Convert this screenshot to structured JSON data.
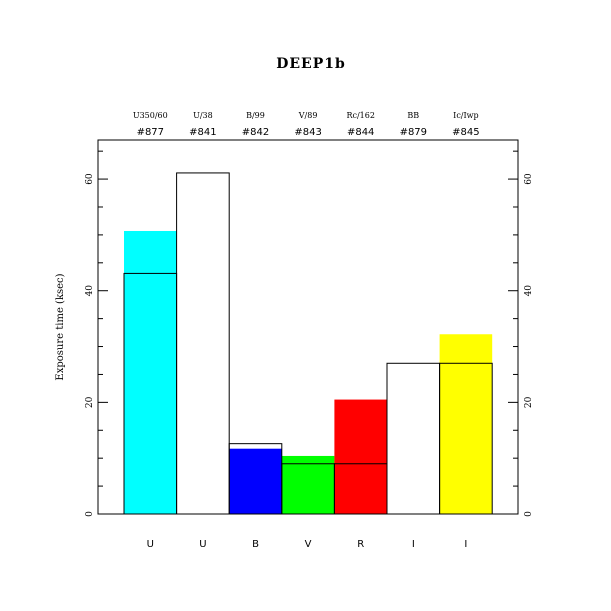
{
  "chart_data": {
    "type": "bar",
    "title": "DEEP1b",
    "ylabel": "Exposure time (ksec)",
    "xlabel": "",
    "ylim": [
      0,
      67
    ],
    "yticks": [
      0,
      20,
      40,
      60
    ],
    "grid": false,
    "categories": [
      "U",
      "U",
      "B",
      "V",
      "R",
      "I",
      "I"
    ],
    "filters": [
      "U350/60",
      "U/38",
      "B/99",
      "V/89",
      "Rc/162",
      "BB",
      "Ic/Iwp"
    ],
    "filter_numbers": [
      "#877",
      "#841",
      "#842",
      "#843",
      "#844",
      "#879",
      "#845"
    ],
    "bars": {
      "values": [
        50.7,
        0,
        11.7,
        10.4,
        20.5,
        0,
        32.2
      ],
      "colors": [
        "#00ffff",
        "#ffffff",
        "#0000ff",
        "#00ff00",
        "#ff0000",
        "#ffffff",
        "#ffff00"
      ]
    },
    "outline": {
      "values": [
        43.1,
        61.1,
        12.6,
        9.0,
        9.0,
        27.0,
        27.0
      ]
    }
  }
}
